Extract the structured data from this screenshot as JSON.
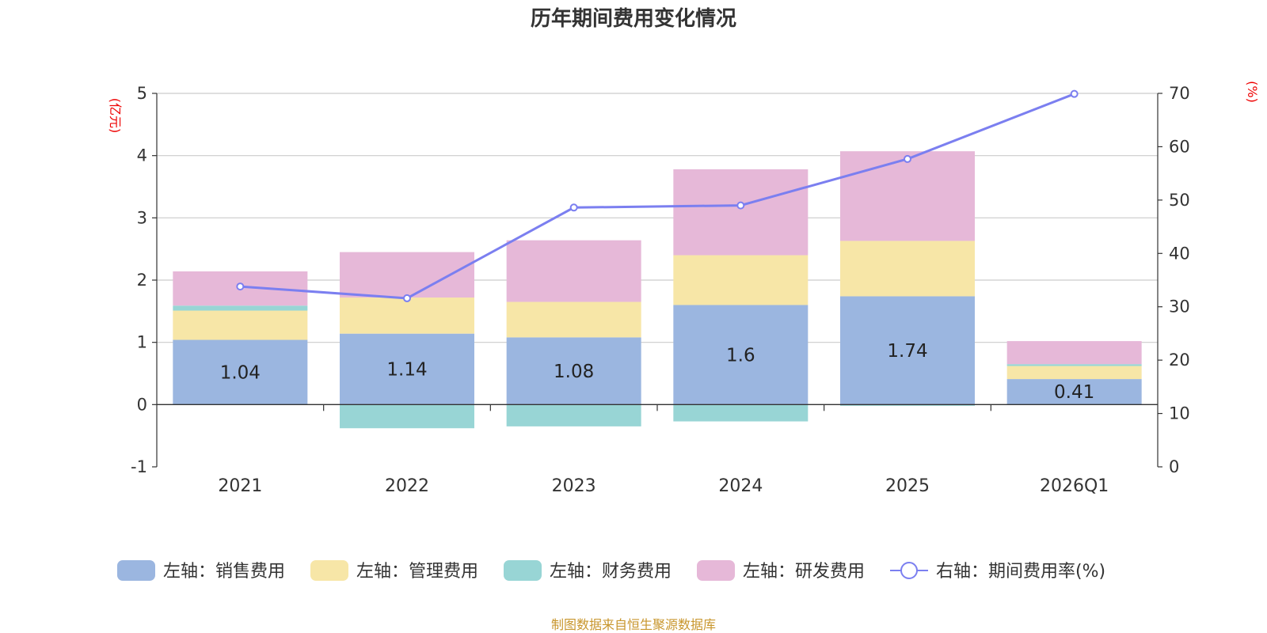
{
  "chart_data": {
    "type": "bar",
    "title": "历年期间费用变化情况",
    "categories": [
      "2021",
      "2022",
      "2023",
      "2024",
      "2025",
      "2026Q1"
    ],
    "left_axis": {
      "unit": "(亿元)",
      "ylim": [
        -1,
        5
      ],
      "ticks": [
        -1,
        0,
        1,
        2,
        3,
        4,
        5
      ]
    },
    "right_axis": {
      "unit": "(%)",
      "ylim": [
        0,
        70
      ],
      "ticks": [
        0,
        10,
        20,
        30,
        40,
        50,
        60,
        70
      ]
    },
    "series": [
      {
        "name": "左轴：销售费用",
        "kind": "bar",
        "axis": "left",
        "color": "#9bb6e0",
        "values": [
          1.04,
          1.14,
          1.08,
          1.6,
          1.74,
          0.41
        ],
        "labels": [
          "1.04",
          "1.14",
          "1.08",
          "1.6",
          "1.74",
          "0.41"
        ]
      },
      {
        "name": "左轴：管理费用",
        "kind": "bar",
        "axis": "left",
        "color": "#f7e6a7",
        "values": [
          0.47,
          0.58,
          0.57,
          0.8,
          0.89,
          0.21
        ]
      },
      {
        "name": "左轴：财务费用",
        "kind": "bar",
        "axis": "left",
        "color": "#98d5d5",
        "values": [
          0.08,
          -0.38,
          -0.35,
          -0.27,
          -0.02,
          0.03
        ]
      },
      {
        "name": "左轴：研发费用",
        "kind": "bar",
        "axis": "left",
        "color": "#e6b8d8",
        "values": [
          0.55,
          0.73,
          0.99,
          1.38,
          1.44,
          0.37
        ]
      },
      {
        "name": "右轴：期间费用率(%)",
        "kind": "line",
        "axis": "right",
        "color": "#7b7ff0",
        "values": [
          33.8,
          31.6,
          48.6,
          49.0,
          57.7,
          69.9
        ]
      }
    ]
  },
  "footer": {
    "source": "制图数据来自恒生聚源数据库"
  }
}
